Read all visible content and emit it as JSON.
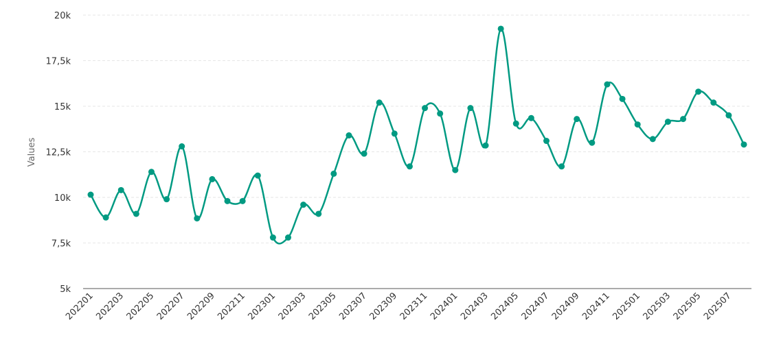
{
  "chart_data": {
    "type": "line",
    "title": "",
    "xlabel": "",
    "ylabel": "Values",
    "ylim": [
      5000,
      20000
    ],
    "yticks": [
      5000,
      7500,
      10000,
      12500,
      15000,
      17500,
      20000
    ],
    "ytick_labels": [
      "5k",
      "7,5k",
      "10k",
      "12,5k",
      "15k",
      "17,5k",
      "20k"
    ],
    "grid": true,
    "color": "#009a82",
    "x": [
      "202201",
      "202202",
      "202203",
      "202204",
      "202205",
      "202206",
      "202207",
      "202208",
      "202209",
      "202210",
      "202211",
      "202212",
      "202301",
      "202302",
      "202303",
      "202304",
      "202305",
      "202306",
      "202307",
      "202308",
      "202309",
      "202310",
      "202311",
      "202312",
      "202401",
      "202402",
      "202403",
      "202404",
      "202405",
      "202406",
      "202407",
      "202408",
      "202409",
      "202410",
      "202411",
      "202412",
      "202501",
      "202502",
      "202503",
      "202504",
      "202505",
      "202506",
      "202507",
      "202508"
    ],
    "xtick_labels": [
      "202201",
      "202203",
      "202205",
      "202207",
      "202209",
      "202211",
      "202301",
      "202303",
      "202305",
      "202307",
      "202309",
      "202311",
      "202401",
      "202403",
      "202405",
      "202407",
      "202409",
      "202411",
      "202501",
      "202503",
      "202505",
      "202507"
    ],
    "series": [
      {
        "name": "Values",
        "values": [
          10150,
          8900,
          10400,
          9100,
          11400,
          9900,
          12800,
          8850,
          11000,
          9800,
          9800,
          11200,
          7800,
          7800,
          9600,
          9100,
          11300,
          13400,
          12400,
          15200,
          13500,
          11700,
          14900,
          14600,
          11500,
          14900,
          12850,
          19250,
          14050,
          14350,
          13100,
          11700,
          14300,
          13000,
          16200,
          15400,
          14000,
          13200,
          14150,
          14300,
          15800,
          15200,
          14500,
          12900
        ]
      }
    ]
  }
}
